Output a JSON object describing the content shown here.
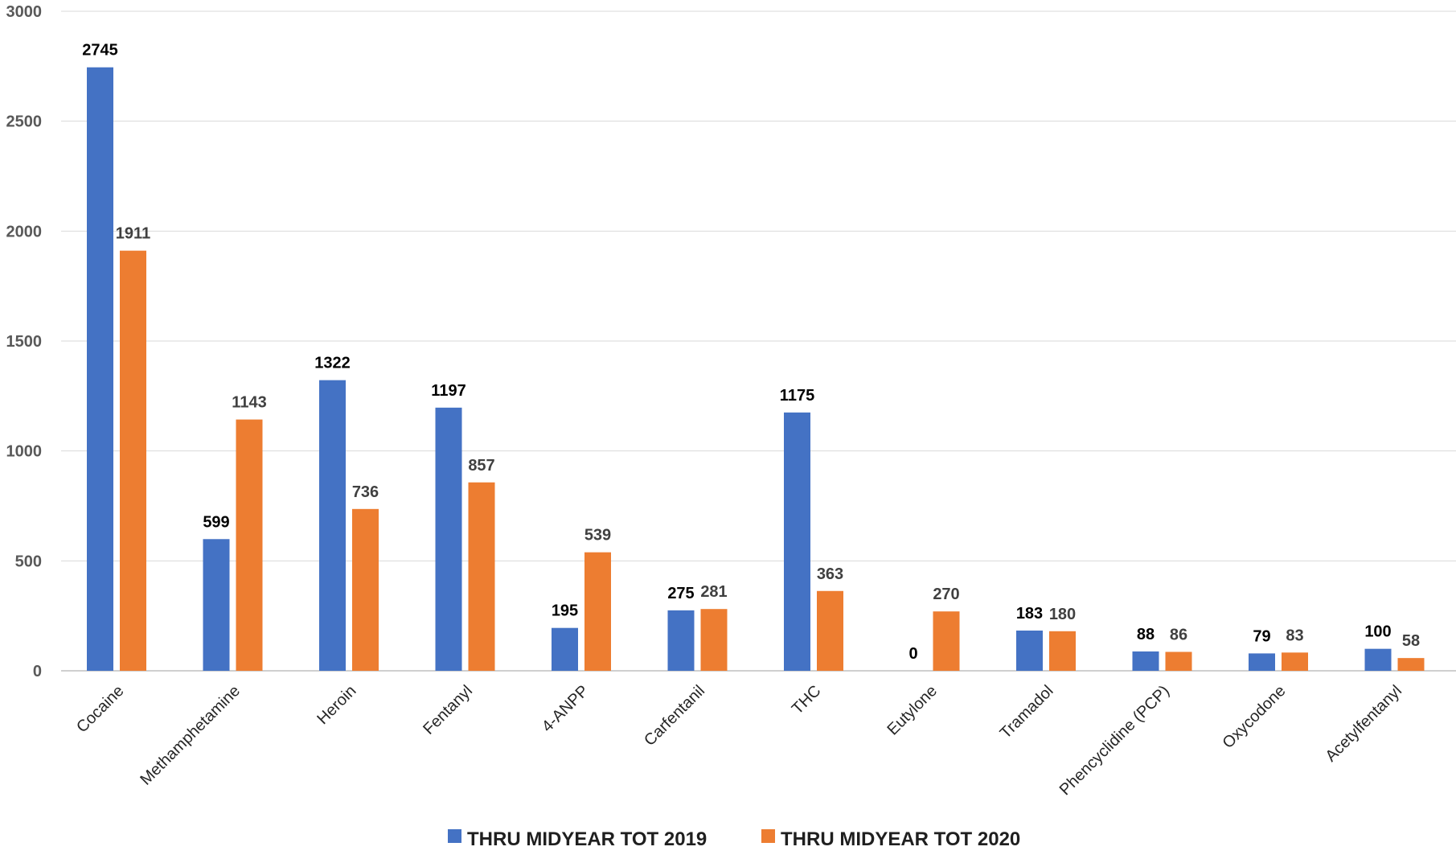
{
  "chart_data": {
    "type": "bar",
    "title": "",
    "xlabel": "",
    "ylabel": "",
    "ylim": [
      0,
      3000
    ],
    "yticks": [
      0,
      500,
      1000,
      1500,
      2000,
      2500,
      3000
    ],
    "grid": true,
    "legend_position": "bottom",
    "categories": [
      "Cocaine",
      "Methamphetamine",
      "Heroin",
      "Fentanyl",
      "4-ANPP",
      "Carfentanil",
      "THC",
      "Eutylone",
      "Tramadol",
      "Phencyclidine (PCP)",
      "Oxycodone",
      "Acetylfentanyl"
    ],
    "series": [
      {
        "name": "THRU MIDYEAR TOT 2019",
        "color": "#4472C4",
        "label_color": "#000000",
        "values": [
          2745,
          599,
          1322,
          1197,
          195,
          275,
          1175,
          0,
          183,
          88,
          79,
          100
        ]
      },
      {
        "name": "THRU MIDYEAR TOT 2020",
        "color": "#ED7D31",
        "label_color": "#404040",
        "values": [
          1911,
          1143,
          736,
          857,
          539,
          281,
          363,
          270,
          180,
          86,
          83,
          58
        ]
      }
    ]
  }
}
